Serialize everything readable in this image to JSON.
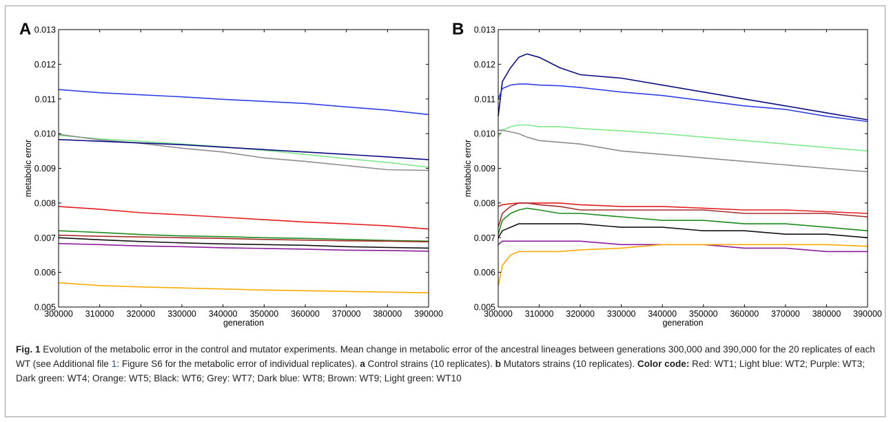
{
  "caption": {
    "fig_label": "Fig. 1",
    "title": "Evolution of the metabolic error in the control and mutator experiments. Mean change in metabolic error of the ancestral lineages between generations 300,000 and 390,000 for the 20 replicates of each WT (see Additional file ",
    "ref_num": "1",
    "after_ref": ": Figure S6 for the metabolic error of individual replicates). ",
    "a_label": "a",
    "a_text": " Control strains (10 replicates). ",
    "b_label": "b",
    "b_text": " Mutators strains (10 replicates). ",
    "color_code_label": "Color code:",
    "color_code_text": " Red: WT1; Light blue: WT2; Purple: WT3; Dark green: WT4; Orange: WT5; Black: WT6; Grey: WT7; Dark blue: WT8; Brown: WT9; Light green: WT10"
  },
  "colors": {
    "red": "#e41a1c",
    "light_blue": "#2e3fe6",
    "purple": "#8a1a9a",
    "dark_green": "#1a8a1a",
    "orange": "#ffaa00",
    "black": "#111111",
    "grey": "#8c8c8c",
    "dark_blue": "#0a0a80",
    "brown": "#a52a2a",
    "light_green": "#7ee88a"
  },
  "chart_data": [
    {
      "panel_label": "A",
      "type": "line",
      "xlabel": "generation",
      "ylabel": "metabolic error",
      "xlim": [
        300000,
        390000
      ],
      "ylim": [
        0.005,
        0.013
      ],
      "xticks": [
        "300000",
        "310000",
        "320000",
        "330000",
        "340000",
        "350000",
        "360000",
        "370000",
        "380000",
        "390000"
      ],
      "yticks": [
        "0.005",
        "0.006",
        "0.007",
        "0.008",
        "0.009",
        "0.010",
        "0.011",
        "0.012",
        "0.013"
      ],
      "x": [
        300000,
        310000,
        320000,
        330000,
        340000,
        350000,
        360000,
        370000,
        380000,
        390000
      ],
      "series": [
        {
          "color": "light_blue",
          "values": [
            0.01127,
            0.01118,
            0.01112,
            0.01106,
            0.01099,
            0.01093,
            0.01087,
            0.01077,
            0.01068,
            0.01055
          ]
        },
        {
          "color": "light_green",
          "values": [
            0.00995,
            0.00985,
            0.00978,
            0.0097,
            0.00962,
            0.00952,
            0.0094,
            0.00928,
            0.00917,
            0.00903
          ]
        },
        {
          "color": "grey",
          "values": [
            0.00998,
            0.00982,
            0.00972,
            0.00958,
            0.00947,
            0.0093,
            0.0092,
            0.00908,
            0.00896,
            0.00894
          ]
        },
        {
          "color": "dark_blue",
          "values": [
            0.00983,
            0.00978,
            0.00973,
            0.00968,
            0.00961,
            0.00954,
            0.00947,
            0.0094,
            0.00933,
            0.00925
          ]
        },
        {
          "color": "red",
          "values": [
            0.0079,
            0.00782,
            0.00772,
            0.00766,
            0.00759,
            0.00752,
            0.00745,
            0.0074,
            0.00734,
            0.00725
          ]
        },
        {
          "color": "dark_green",
          "values": [
            0.0072,
            0.00715,
            0.00709,
            0.00705,
            0.00703,
            0.007,
            0.00698,
            0.00695,
            0.00692,
            0.0069
          ]
        },
        {
          "color": "brown",
          "values": [
            0.00707,
            0.00704,
            0.00702,
            0.007,
            0.00698,
            0.00695,
            0.00693,
            0.00691,
            0.0069,
            0.00688
          ]
        },
        {
          "color": "black",
          "values": [
            0.007,
            0.00694,
            0.00689,
            0.00685,
            0.00682,
            0.0068,
            0.00678,
            0.00674,
            0.00672,
            0.0067
          ]
        },
        {
          "color": "purple",
          "values": [
            0.00683,
            0.0068,
            0.00676,
            0.00674,
            0.00671,
            0.00669,
            0.00667,
            0.00664,
            0.00663,
            0.00661
          ]
        },
        {
          "color": "orange",
          "values": [
            0.0057,
            0.00562,
            0.00558,
            0.00555,
            0.00552,
            0.00549,
            0.00547,
            0.00545,
            0.00543,
            0.00541
          ]
        }
      ]
    },
    {
      "panel_label": "B",
      "type": "line",
      "xlabel": "generation",
      "ylabel": "metabolic error",
      "xlim": [
        300000,
        390000
      ],
      "ylim": [
        0.005,
        0.013
      ],
      "xticks": [
        "300000",
        "310000",
        "320000",
        "330000",
        "340000",
        "350000",
        "360000",
        "370000",
        "380000",
        "390000"
      ],
      "yticks": [
        "0.005",
        "0.006",
        "0.007",
        "0.008",
        "0.009",
        "0.010",
        "0.011",
        "0.012",
        "0.013"
      ],
      "x": [
        300000,
        301000,
        303000,
        305000,
        307000,
        310000,
        315000,
        320000,
        330000,
        340000,
        350000,
        360000,
        370000,
        380000,
        390000
      ],
      "series": [
        {
          "color": "dark_blue",
          "values": [
            0.0105,
            0.0115,
            0.0119,
            0.0122,
            0.0123,
            0.0122,
            0.0119,
            0.0117,
            0.0116,
            0.0114,
            0.0112,
            0.011,
            0.0108,
            0.0106,
            0.0104
          ]
        },
        {
          "color": "light_blue",
          "values": [
            0.011,
            0.0113,
            0.0114,
            0.01143,
            0.01143,
            0.0114,
            0.01138,
            0.01133,
            0.0112,
            0.0111,
            0.01095,
            0.0108,
            0.0107,
            0.0105,
            0.01035
          ]
        },
        {
          "color": "light_green",
          "values": [
            0.0099,
            0.0101,
            0.0102,
            0.01025,
            0.01025,
            0.0102,
            0.0102,
            0.01015,
            0.01008,
            0.01,
            0.0099,
            0.0098,
            0.0097,
            0.0096,
            0.0095
          ]
        },
        {
          "color": "grey",
          "values": [
            0.0101,
            0.0101,
            0.01005,
            0.01,
            0.0099,
            0.0098,
            0.00975,
            0.0097,
            0.0095,
            0.0094,
            0.0093,
            0.0092,
            0.0091,
            0.009,
            0.0089
          ]
        },
        {
          "color": "red",
          "values": [
            0.0079,
            0.00795,
            0.00798,
            0.008,
            0.008,
            0.008,
            0.008,
            0.00795,
            0.0079,
            0.0079,
            0.00785,
            0.0078,
            0.0078,
            0.00775,
            0.0077
          ]
        },
        {
          "color": "brown",
          "values": [
            0.0073,
            0.0077,
            0.0079,
            0.008,
            0.008,
            0.00795,
            0.0079,
            0.0078,
            0.0078,
            0.0078,
            0.0078,
            0.0077,
            0.0077,
            0.0077,
            0.0076
          ]
        },
        {
          "color": "dark_green",
          "values": [
            0.0071,
            0.0075,
            0.0077,
            0.0078,
            0.00785,
            0.0078,
            0.0077,
            0.0077,
            0.0076,
            0.0075,
            0.0075,
            0.0074,
            0.0074,
            0.0073,
            0.0072
          ]
        },
        {
          "color": "black",
          "values": [
            0.007,
            0.0072,
            0.0073,
            0.0074,
            0.0074,
            0.0074,
            0.0074,
            0.0074,
            0.0073,
            0.0073,
            0.0072,
            0.0072,
            0.0071,
            0.0071,
            0.007
          ]
        },
        {
          "color": "purple",
          "values": [
            0.0068,
            0.0069,
            0.0069,
            0.0069,
            0.0069,
            0.0069,
            0.0069,
            0.0069,
            0.0068,
            0.0068,
            0.0068,
            0.0067,
            0.0067,
            0.0066,
            0.0066
          ]
        },
        {
          "color": "orange",
          "values": [
            0.0056,
            0.0062,
            0.0065,
            0.0066,
            0.0066,
            0.0066,
            0.0066,
            0.00665,
            0.0067,
            0.0068,
            0.0068,
            0.0068,
            0.0068,
            0.0068,
            0.00675
          ]
        }
      ]
    }
  ]
}
